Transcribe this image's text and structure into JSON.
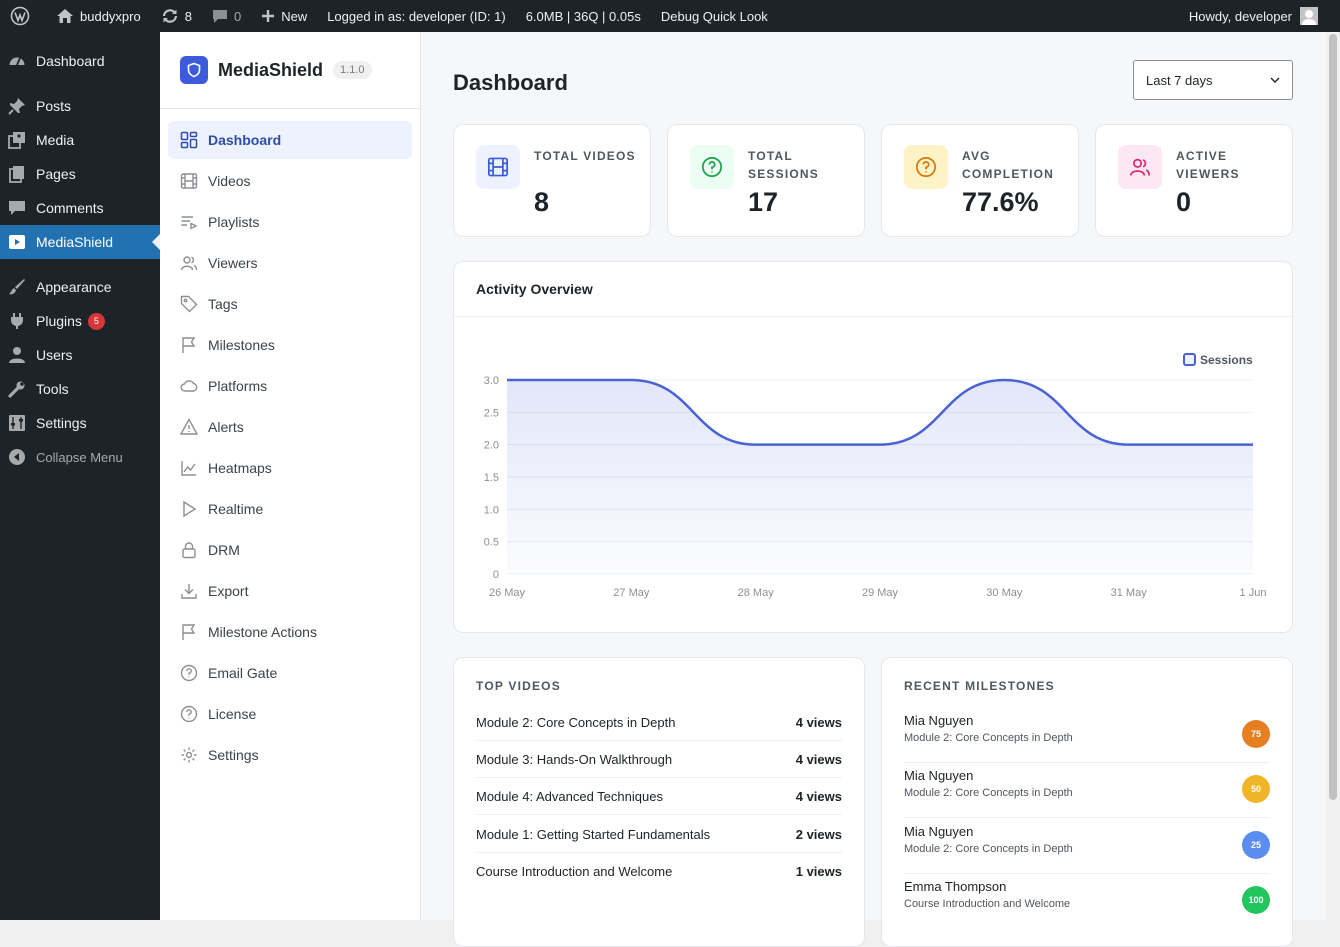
{
  "admin_bar": {
    "site_name": "buddyxpro",
    "updates_count": "8",
    "comments_count": "0",
    "new_label": "New",
    "logged_in": "Logged in as: developer (ID: 1)",
    "perf": "6.0MB | 36Q | 0.05s",
    "debug": "Debug Quick Look",
    "howdy": "Howdy, developer"
  },
  "wp_menu": {
    "items": [
      {
        "label": "Dashboard",
        "icon": "dashboard-icon"
      },
      {
        "label": "Posts",
        "icon": "pin-icon"
      },
      {
        "label": "Media",
        "icon": "media-icon"
      },
      {
        "label": "Pages",
        "icon": "pages-icon"
      },
      {
        "label": "Comments",
        "icon": "comments-icon"
      },
      {
        "label": "MediaShield",
        "icon": "video-icon"
      },
      {
        "label": "Appearance",
        "icon": "brush-icon"
      },
      {
        "label": "Plugins",
        "icon": "plugin-icon",
        "badge": "5"
      },
      {
        "label": "Users",
        "icon": "user-icon"
      },
      {
        "label": "Tools",
        "icon": "wrench-icon"
      },
      {
        "label": "Settings",
        "icon": "settings-icon"
      }
    ],
    "collapse_label": "Collapse Menu"
  },
  "plugin": {
    "name": "MediaShield",
    "version": "1.1.0",
    "nav": [
      "Dashboard",
      "Videos",
      "Playlists",
      "Viewers",
      "Tags",
      "Milestones",
      "Platforms",
      "Alerts",
      "Heatmaps",
      "Realtime",
      "DRM",
      "Export",
      "Milestone Actions",
      "Email Gate",
      "License",
      "Settings"
    ]
  },
  "page": {
    "title": "Dashboard",
    "range_selected": "Last 7 days"
  },
  "stats": [
    {
      "label": "TOTAL VIDEOS",
      "value": "8",
      "icon": "film-icon",
      "color": "#3b5bdb"
    },
    {
      "label": "TOTAL SESSIONS",
      "value": "17",
      "icon": "question-circle-icon",
      "color": "#16a34a"
    },
    {
      "label": "AVG COMPLETION",
      "value": "77.6%",
      "icon": "question-circle-icon",
      "color": "#d97706"
    },
    {
      "label": "ACTIVE VIEWERS",
      "value": "0",
      "icon": "users-icon",
      "color": "#db2777"
    }
  ],
  "activity": {
    "title": "Activity Overview"
  },
  "chart_data": {
    "type": "area",
    "categories": [
      "26 May",
      "27 May",
      "28 May",
      "29 May",
      "30 May",
      "31 May",
      "1 Jun"
    ],
    "series": [
      {
        "name": "Sessions",
        "values": [
          3,
          3,
          2,
          2,
          3,
          2,
          2
        ]
      }
    ],
    "yticks": [
      "0",
      "0.5",
      "1.0",
      "1.5",
      "2.0",
      "2.5",
      "3.0"
    ],
    "ylim": [
      0,
      3
    ],
    "legend": "top-right",
    "grid": true,
    "line_color": "#4a63d4"
  },
  "top_videos": {
    "title": "TOP VIDEOS",
    "rows": [
      {
        "name": "Module 2: Core Concepts in Depth",
        "views": "4 views"
      },
      {
        "name": "Module 3: Hands-On Walkthrough",
        "views": "4 views"
      },
      {
        "name": "Module 4: Advanced Techniques",
        "views": "4 views"
      },
      {
        "name": "Module 1: Getting Started Fundamentals",
        "views": "2 views"
      },
      {
        "name": "Course Introduction and Welcome",
        "views": "1 views"
      }
    ]
  },
  "recent_milestones": {
    "title": "RECENT MILESTONES",
    "rows": [
      {
        "viewer": "Mia Nguyen",
        "video": "Module 2: Core Concepts in Depth",
        "pct": "75",
        "color": "#e67e22"
      },
      {
        "viewer": "Mia Nguyen",
        "video": "Module 2: Core Concepts in Depth",
        "pct": "50",
        "color": "#f0b429"
      },
      {
        "viewer": "Mia Nguyen",
        "video": "Module 2: Core Concepts in Depth",
        "pct": "25",
        "color": "#5b8def"
      },
      {
        "viewer": "Emma Thompson",
        "video": "Course Introduction and Welcome",
        "pct": "100",
        "color": "#22c55e"
      }
    ]
  }
}
